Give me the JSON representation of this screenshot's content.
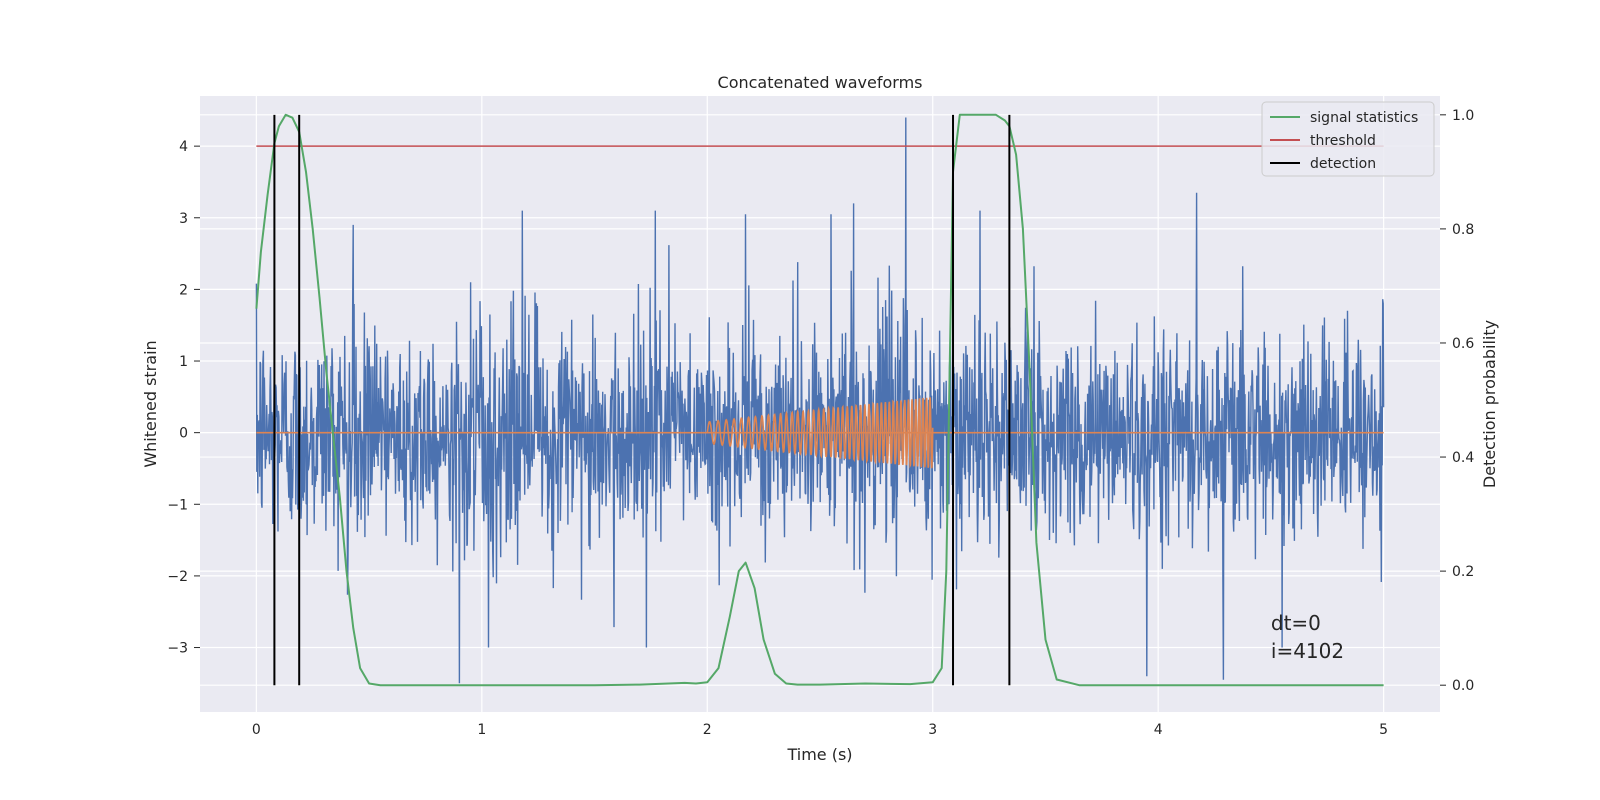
{
  "chart_data": {
    "type": "line",
    "title": "Concatenated waveforms",
    "xlabel": "Time (s)",
    "ylabel_left": "Whitened strain",
    "ylabel_right": "Detection probability",
    "xlim": [
      -0.25,
      5.25
    ],
    "ylim_left": [
      -3.9,
      4.7
    ],
    "ylim_right": [
      -0.047,
      1.033
    ],
    "xticks": [
      0,
      1,
      2,
      3,
      4,
      5
    ],
    "yticks_left": [
      4,
      3,
      2,
      1,
      0,
      -1,
      -2,
      -3
    ],
    "yticks_left_labels": [
      "4",
      "3",
      "2",
      "1",
      "0",
      "−1",
      "−2",
      "−3"
    ],
    "yticks_right": [
      1.0,
      0.8,
      0.6,
      0.4,
      0.2,
      0.0
    ],
    "yticks_right_labels": [
      "1.0",
      "0.8",
      "0.6",
      "0.4",
      "0.2",
      "0.0"
    ],
    "grid": true,
    "legend_position": "top-right",
    "legend": [
      {
        "label": "signal statistics",
        "color": "#55a868"
      },
      {
        "label": "threshold",
        "color": "#c44e52"
      },
      {
        "label": "detection",
        "color": "#000000"
      }
    ],
    "colors": {
      "strain": "#4c72b0",
      "template": "#dd8452",
      "signal_statistics": "#55a868",
      "threshold": "#c44e52",
      "detection": "#000000",
      "background": "#eaeaf2"
    },
    "series": [
      {
        "axis": "left",
        "t_start": 0,
        "t_end": 5,
        "noise_std": 0.75,
        "spikes": [
          [
            0.43,
            2.9
          ],
          [
            0.9,
            -3.5
          ],
          [
            1.18,
            3.1
          ],
          [
            1.77,
            3.1
          ],
          [
            2.17,
            3.05
          ],
          [
            2.55,
            3.05
          ],
          [
            2.65,
            3.2
          ],
          [
            2.88,
            4.4
          ],
          [
            3.21,
            3.1
          ],
          [
            3.95,
            -3.4
          ],
          [
            4.17,
            3.35
          ],
          [
            4.29,
            -3.45
          ],
          [
            1.03,
            -3.0
          ],
          [
            1.73,
            -3.0
          ],
          [
            4.55,
            -3.0
          ]
        ]
      },
      {
        "axis": "left",
        "t_start": 2.0,
        "t_end": 3.0,
        "amplitude_start": 0.15,
        "amplitude_end": 0.5,
        "freq_start": 25,
        "freq_end": 65
      },
      {
        "name": "threshold",
        "axis": "left",
        "x": [
          0,
          5
        ],
        "y": [
          4,
          4
        ]
      },
      {
        "name": "signal statistics",
        "axis": "right",
        "x": [
          0,
          0.02,
          0.05,
          0.08,
          0.1,
          0.13,
          0.16,
          0.19,
          0.22,
          0.25,
          0.28,
          0.31,
          0.34,
          0.37,
          0.4,
          0.43,
          0.46,
          0.5,
          0.55,
          0.6,
          1.0,
          1.5,
          1.7,
          1.9,
          1.95,
          2.0,
          2.05,
          2.1,
          2.14,
          2.17,
          2.21,
          2.25,
          2.3,
          2.35,
          2.4,
          2.5,
          2.7,
          2.9,
          3.0,
          3.04,
          3.06,
          3.09,
          3.12,
          3.15,
          3.2,
          3.28,
          3.32,
          3.34,
          3.37,
          3.4,
          3.43,
          3.46,
          3.5,
          3.55,
          3.65,
          4.0,
          5.0
        ],
        "y": [
          0.66,
          0.76,
          0.86,
          0.95,
          0.98,
          1.0,
          0.995,
          0.97,
          0.9,
          0.8,
          0.68,
          0.55,
          0.44,
          0.33,
          0.2,
          0.1,
          0.03,
          0.003,
          0.0,
          0.0,
          0.0,
          0.0,
          0.001,
          0.004,
          0.003,
          0.005,
          0.03,
          0.12,
          0.2,
          0.215,
          0.17,
          0.08,
          0.02,
          0.003,
          0.001,
          0.001,
          0.003,
          0.002,
          0.005,
          0.03,
          0.2,
          0.9,
          1.0,
          1.0,
          1.0,
          1.0,
          0.99,
          0.98,
          0.93,
          0.8,
          0.55,
          0.25,
          0.08,
          0.01,
          0.0,
          0.0,
          0.0
        ]
      }
    ],
    "detections": [
      0.08,
      0.19,
      3.09,
      3.34
    ],
    "annotation": {
      "x": 4.5,
      "line1": "dt=0",
      "line2": "i=4102"
    }
  }
}
